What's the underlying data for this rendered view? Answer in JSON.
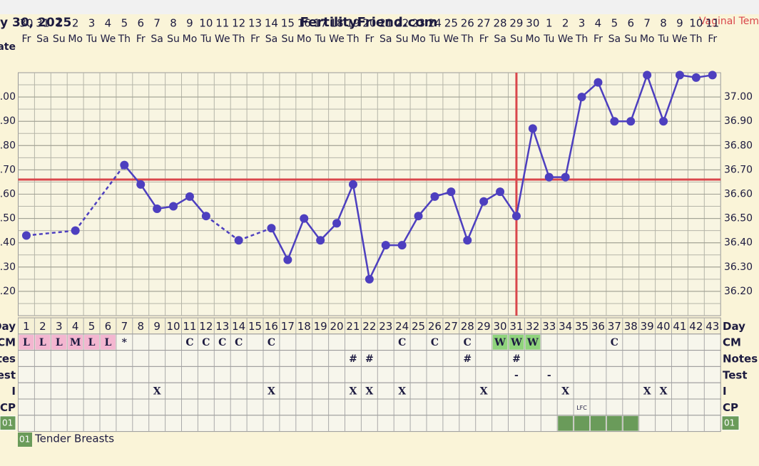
{
  "chart_data": {
    "type": "line",
    "title": "FertilityFriend.com",
    "date_label": "y 30, 2025",
    "series_name": "Vaginal Tem",
    "date_row_label": "ate",
    "x": [
      1,
      2,
      3,
      4,
      5,
      6,
      7,
      8,
      9,
      10,
      11,
      12,
      13,
      14,
      15,
      16,
      17,
      18,
      19,
      20,
      21,
      22,
      23,
      24,
      25,
      26,
      27,
      28,
      29,
      30,
      31,
      32,
      33,
      34,
      35,
      36,
      37,
      38,
      39,
      40,
      41,
      42,
      43
    ],
    "dates": [
      30,
      31,
      1,
      2,
      3,
      4,
      5,
      6,
      7,
      8,
      9,
      10,
      11,
      12,
      13,
      14,
      15,
      16,
      17,
      18,
      19,
      20,
      21,
      22,
      23,
      24,
      25,
      26,
      27,
      28,
      29,
      30,
      1,
      2,
      3,
      4,
      5,
      6,
      7,
      8,
      9,
      10,
      11
    ],
    "weekdays": [
      "Fr",
      "Sa",
      "Su",
      "Mo",
      "Tu",
      "We",
      "Th",
      "Fr",
      "Sa",
      "Su",
      "Mo",
      "Tu",
      "We",
      "Th",
      "Fr",
      "Sa",
      "Su",
      "Mo",
      "Tu",
      "We",
      "Th",
      "Fr",
      "Sa",
      "Su",
      "Mo",
      "Tu",
      "We",
      "Th",
      "Fr",
      "Sa",
      "Su",
      "Mo",
      "Tu",
      "We",
      "Th",
      "Fr",
      "Sa",
      "Su",
      "Mo",
      "Tu",
      "We",
      "Th",
      "Fr"
    ],
    "values": [
      36.43,
      null,
      null,
      36.45,
      null,
      null,
      36.72,
      36.64,
      36.54,
      36.55,
      36.59,
      36.51,
      null,
      36.41,
      null,
      36.46,
      36.33,
      36.5,
      36.41,
      36.48,
      36.64,
      36.25,
      36.39,
      36.39,
      36.51,
      36.59,
      36.61,
      36.41,
      36.57,
      36.61,
      36.51,
      36.87,
      36.67,
      36.67,
      37.0,
      37.06,
      36.9,
      36.9,
      37.09,
      36.9,
      37.09,
      37.08,
      37.09
    ],
    "color": "#4d3fbf",
    "coverline": 36.66,
    "ovulation_day": 31,
    "reference_color": "#d9464b",
    "ylim": [
      36.1,
      37.1
    ],
    "yticks": [
      {
        "value": 36.2,
        "label": "36.20"
      },
      {
        "value": 36.3,
        "label": "36.30"
      },
      {
        "value": 36.4,
        "label": "36.40"
      },
      {
        "value": 36.5,
        "label": "36.50"
      },
      {
        "value": 36.6,
        "label": "36.60"
      },
      {
        "value": 36.7,
        "label": "36.70"
      },
      {
        "value": 36.8,
        "label": "36.80"
      },
      {
        "value": 36.9,
        "label": "36.90"
      },
      {
        "value": 37.0,
        "label": "37.00"
      }
    ],
    "grid": true
  },
  "table": {
    "row_labels": [
      "Day",
      "CM",
      "Notes",
      "Test",
      "I",
      "CP"
    ],
    "cm": [
      "L",
      "L",
      "L",
      "M",
      "L",
      "L",
      "*",
      null,
      null,
      null,
      "C",
      "C",
      "C",
      "C",
      null,
      "C",
      null,
      null,
      null,
      null,
      null,
      null,
      null,
      "C",
      null,
      "C",
      null,
      "C",
      null,
      "W",
      "W",
      "W",
      null,
      null,
      null,
      null,
      "C",
      null,
      null,
      null,
      null,
      null,
      null
    ],
    "cm_colors": {
      "L": "#f3b6d0",
      "M": "#f3b6d0",
      "W": "#8fd37c"
    },
    "notes": [
      null,
      null,
      null,
      null,
      null,
      null,
      null,
      null,
      null,
      null,
      null,
      null,
      null,
      null,
      null,
      null,
      null,
      null,
      null,
      null,
      "#",
      "#",
      null,
      null,
      null,
      null,
      null,
      "#",
      null,
      null,
      "#",
      null,
      null,
      null,
      null,
      null,
      null,
      null,
      null,
      null,
      null,
      null,
      null
    ],
    "test": [
      null,
      null,
      null,
      null,
      null,
      null,
      null,
      null,
      null,
      null,
      null,
      null,
      null,
      null,
      null,
      null,
      null,
      null,
      null,
      null,
      null,
      null,
      null,
      null,
      null,
      null,
      null,
      null,
      null,
      null,
      "-",
      null,
      "-",
      null,
      null,
      null,
      null,
      null,
      null,
      null,
      null,
      null,
      null
    ],
    "intercourse": [
      null,
      null,
      null,
      null,
      null,
      null,
      null,
      null,
      "X",
      null,
      null,
      null,
      null,
      null,
      null,
      "X",
      null,
      null,
      null,
      null,
      "X",
      "X",
      null,
      "X",
      null,
      null,
      null,
      null,
      "X",
      null,
      null,
      null,
      null,
      "X",
      null,
      null,
      null,
      null,
      "X",
      "X",
      null,
      null,
      null
    ],
    "cp": [
      null,
      null,
      null,
      null,
      null,
      null,
      null,
      null,
      null,
      null,
      null,
      null,
      null,
      null,
      null,
      null,
      null,
      null,
      null,
      null,
      null,
      null,
      null,
      null,
      null,
      null,
      null,
      null,
      null,
      null,
      null,
      null,
      null,
      null,
      "LFC",
      null,
      null,
      null,
      null,
      null,
      null,
      null,
      null
    ],
    "symptom": {
      "code": "01",
      "label": "Tender Breasts",
      "color": "#6a9b5a",
      "days": [
        34,
        35,
        36,
        37,
        38
      ]
    }
  }
}
